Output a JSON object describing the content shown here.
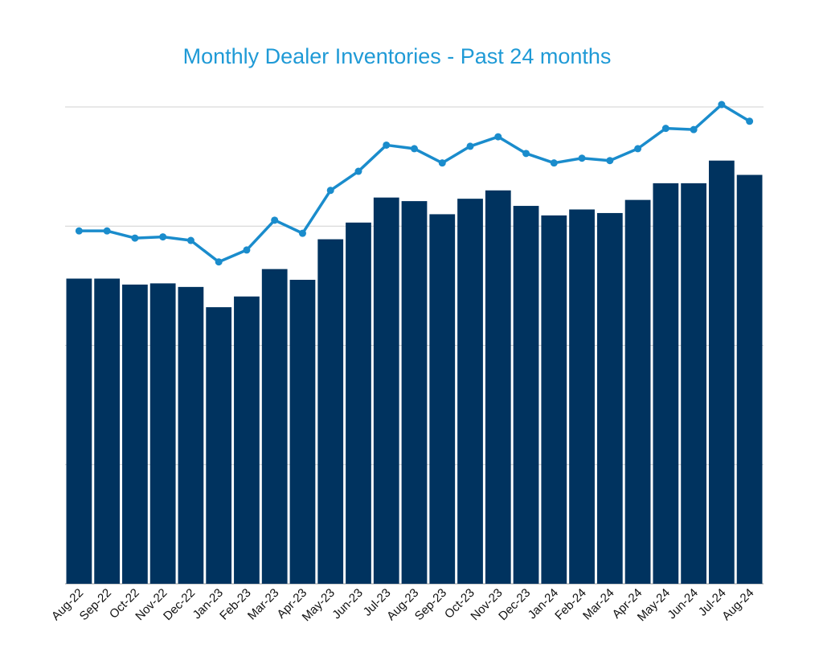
{
  "chart_data": {
    "type": "bar",
    "title": "Monthly Dealer Inventories - Past 24 months",
    "xlabel": "",
    "ylabel": "",
    "ylim": [
      0,
      4
    ],
    "grid": true,
    "y_tick_labels_shown": false,
    "categories": [
      "Aug-22",
      "Sep-22",
      "Oct-22",
      "Nov-22",
      "Dec-22",
      "Jan-23",
      "Feb-23",
      "Mar-23",
      "Apr-23",
      "May-23",
      "Jun-23",
      "Jul-23",
      "Aug-23",
      "Sep-23",
      "Oct-23",
      "Nov-23",
      "Dec-23",
      "Jan-24",
      "Feb-24",
      "Mar-24",
      "Apr-24",
      "May-24",
      "Jun-24",
      "Jul-24",
      "Aug-24"
    ],
    "series": [
      {
        "type": "bar",
        "color": "#00335f",
        "values": [
          2.56,
          2.56,
          2.51,
          2.52,
          2.49,
          2.32,
          2.41,
          2.64,
          2.55,
          2.89,
          3.03,
          3.24,
          3.21,
          3.1,
          3.23,
          3.3,
          3.17,
          3.09,
          3.14,
          3.11,
          3.22,
          3.36,
          3.36,
          3.55,
          3.43
        ]
      },
      {
        "type": "line",
        "color": "#1a8ccc",
        "values": [
          2.96,
          2.96,
          2.9,
          2.91,
          2.88,
          2.7,
          2.8,
          3.05,
          2.94,
          3.3,
          3.46,
          3.68,
          3.65,
          3.53,
          3.67,
          3.75,
          3.61,
          3.53,
          3.57,
          3.55,
          3.65,
          3.82,
          3.81,
          4.02,
          3.88
        ]
      }
    ]
  }
}
